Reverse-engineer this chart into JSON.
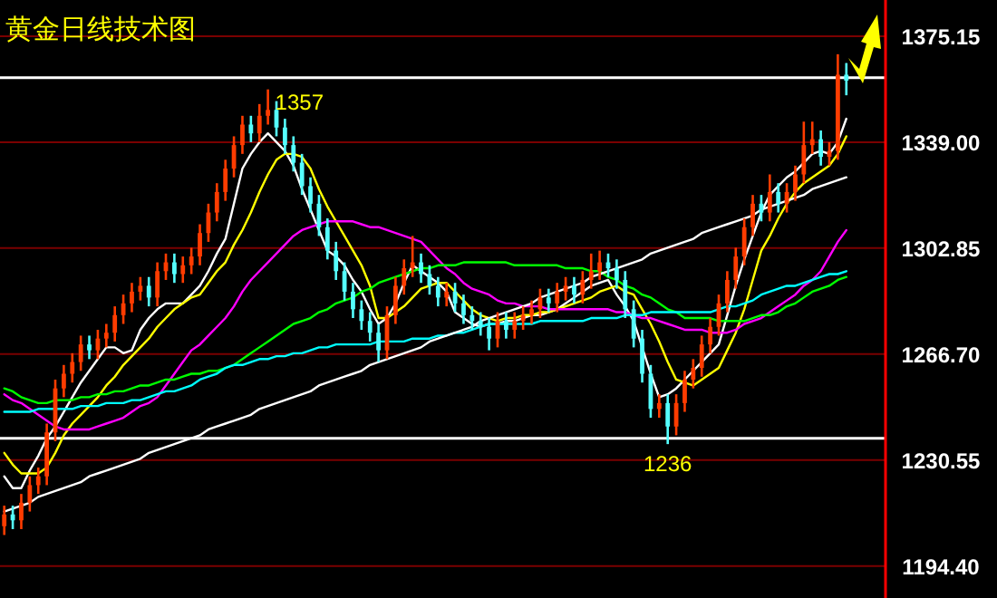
{
  "chart_data": {
    "type": "candlestick",
    "title": "黄金日线技术图",
    "categories": [
      null,
      null,
      null,
      null,
      null,
      null,
      null,
      null,
      null,
      null,
      null,
      null,
      null,
      null,
      null,
      null,
      null,
      null,
      null,
      null,
      null,
      null,
      null,
      null,
      null,
      null,
      null,
      null,
      null,
      null,
      null,
      null,
      null,
      null,
      null,
      null,
      null,
      null,
      null,
      null,
      null,
      null,
      null,
      null,
      null,
      null,
      null,
      null,
      null,
      null,
      null,
      null,
      null,
      null,
      null,
      null,
      null,
      null,
      null,
      null,
      null,
      null,
      null,
      null,
      null,
      null,
      null,
      null,
      null,
      null,
      null,
      null,
      null,
      null,
      null,
      null,
      null,
      null,
      null,
      null,
      null,
      null,
      null,
      null,
      null,
      null,
      null,
      null,
      null,
      null,
      null,
      null,
      null,
      null,
      null,
      null,
      null,
      null,
      null,
      null
    ],
    "ohlc": [
      [
        1208,
        1215,
        1205,
        1212
      ],
      [
        1212,
        1215,
        1207,
        1210
      ],
      [
        1210,
        1219,
        1207,
        1216
      ],
      [
        1216,
        1225,
        1213,
        1222
      ],
      [
        1222,
        1228,
        1219,
        1225
      ],
      [
        1225,
        1243,
        1222,
        1240
      ],
      [
        1240,
        1258,
        1237,
        1255
      ],
      [
        1255,
        1263,
        1252,
        1260
      ],
      [
        1260,
        1267,
        1257,
        1264
      ],
      [
        1264,
        1273,
        1261,
        1270
      ],
      [
        1270,
        1273,
        1265,
        1268
      ],
      [
        1268,
        1275,
        1265,
        1272
      ],
      [
        1272,
        1277,
        1269,
        1274
      ],
      [
        1274,
        1283,
        1271,
        1280
      ],
      [
        1280,
        1287,
        1277,
        1284
      ],
      [
        1284,
        1291,
        1281,
        1288
      ],
      [
        1288,
        1293,
        1285,
        1290
      ],
      [
        1290,
        1293,
        1283,
        1286
      ],
      [
        1286,
        1298,
        1283,
        1295
      ],
      [
        1295,
        1301,
        1292,
        1298
      ],
      [
        1298,
        1301,
        1291,
        1294
      ],
      [
        1294,
        1300,
        1291,
        1297
      ],
      [
        1297,
        1303,
        1294,
        1300
      ],
      [
        1300,
        1311,
        1297,
        1308
      ],
      [
        1308,
        1318,
        1305,
        1315
      ],
      [
        1315,
        1325,
        1312,
        1322
      ],
      [
        1322,
        1333,
        1319,
        1330
      ],
      [
        1330,
        1341,
        1327,
        1338
      ],
      [
        1338,
        1348,
        1335,
        1345
      ],
      [
        1345,
        1348,
        1339,
        1342
      ],
      [
        1342,
        1352,
        1339,
        1348
      ],
      [
        1348,
        1357,
        1345,
        1350
      ],
      [
        1350,
        1353,
        1341,
        1344
      ],
      [
        1344,
        1347,
        1335,
        1338
      ],
      [
        1338,
        1341,
        1329,
        1332
      ],
      [
        1332,
        1335,
        1321,
        1324
      ],
      [
        1324,
        1327,
        1315,
        1318
      ],
      [
        1318,
        1321,
        1307,
        1310
      ],
      [
        1310,
        1313,
        1299,
        1302
      ],
      [
        1302,
        1305,
        1292,
        1295
      ],
      [
        1295,
        1298,
        1285,
        1288
      ],
      [
        1288,
        1291,
        1279,
        1282
      ],
      [
        1282,
        1285,
        1275,
        1278
      ],
      [
        1278,
        1281,
        1271,
        1274
      ],
      [
        1274,
        1277,
        1264,
        1268
      ],
      [
        1268,
        1283,
        1265,
        1280
      ],
      [
        1280,
        1293,
        1277,
        1290
      ],
      [
        1290,
        1299,
        1287,
        1296
      ],
      [
        1296,
        1307,
        1293,
        1298
      ],
      [
        1298,
        1301,
        1291,
        1294
      ],
      [
        1294,
        1297,
        1287,
        1290
      ],
      [
        1290,
        1293,
        1283,
        1286
      ],
      [
        1286,
        1291,
        1283,
        1288
      ],
      [
        1288,
        1291,
        1281,
        1284
      ],
      [
        1284,
        1287,
        1277,
        1280
      ],
      [
        1280,
        1283,
        1275,
        1278
      ],
      [
        1278,
        1281,
        1273,
        1276
      ],
      [
        1276,
        1279,
        1268,
        1272
      ],
      [
        1272,
        1281,
        1269,
        1278
      ],
      [
        1278,
        1281,
        1272,
        1275
      ],
      [
        1275,
        1281,
        1272,
        1278
      ],
      [
        1278,
        1283,
        1275,
        1280
      ],
      [
        1280,
        1285,
        1277,
        1282
      ],
      [
        1282,
        1289,
        1279,
        1286
      ],
      [
        1286,
        1289,
        1281,
        1284
      ],
      [
        1284,
        1291,
        1281,
        1288
      ],
      [
        1288,
        1293,
        1285,
        1290
      ],
      [
        1290,
        1293,
        1284,
        1287
      ],
      [
        1287,
        1295,
        1284,
        1292
      ],
      [
        1292,
        1301,
        1289,
        1295
      ],
      [
        1295,
        1302,
        1292,
        1298
      ],
      [
        1298,
        1301,
        1293,
        1296
      ],
      [
        1296,
        1299,
        1289,
        1292
      ],
      [
        1292,
        1295,
        1279,
        1282
      ],
      [
        1282,
        1285,
        1269,
        1272
      ],
      [
        1272,
        1275,
        1257,
        1260
      ],
      [
        1260,
        1263,
        1245,
        1248
      ],
      [
        1248,
        1253,
        1245,
        1250
      ],
      [
        1250,
        1253,
        1236,
        1242
      ],
      [
        1242,
        1253,
        1239,
        1250
      ],
      [
        1250,
        1261,
        1247,
        1258
      ],
      [
        1258,
        1265,
        1255,
        1262
      ],
      [
        1262,
        1273,
        1259,
        1270
      ],
      [
        1270,
        1279,
        1267,
        1276
      ],
      [
        1276,
        1287,
        1273,
        1284
      ],
      [
        1284,
        1295,
        1281,
        1292
      ],
      [
        1292,
        1303,
        1289,
        1300
      ],
      [
        1300,
        1313,
        1297,
        1310
      ],
      [
        1310,
        1321,
        1307,
        1318
      ],
      [
        1318,
        1321,
        1312,
        1315
      ],
      [
        1315,
        1328,
        1312,
        1322
      ],
      [
        1322,
        1325,
        1315,
        1318
      ],
      [
        1318,
        1325,
        1315,
        1322
      ],
      [
        1322,
        1331,
        1319,
        1328
      ],
      [
        1328,
        1346,
        1325,
        1338
      ],
      [
        1338,
        1346,
        1335,
        1340
      ],
      [
        1340,
        1343,
        1331,
        1334
      ],
      [
        1334,
        1339,
        1331,
        1336
      ],
      [
        1336,
        1369,
        1333,
        1362
      ],
      [
        1362,
        1366,
        1355,
        1360
      ]
    ],
    "colors": [
      "#ff3c00",
      "#55ffff",
      "#ff3c00",
      "#ff3c00",
      "#ff3c00",
      "#ff3c00",
      "#ff3c00",
      "#ff3c00",
      "#ff3c00",
      "#ff3c00",
      "#55ffff",
      "#ff3c00",
      "#ff3c00",
      "#ff3c00",
      "#ff3c00",
      "#ff3c00",
      "#ff3c00",
      "#55ffff",
      "#ff3c00",
      "#ff3c00",
      "#55ffff",
      "#ff3c00",
      "#ff3c00",
      "#ff3c00",
      "#ff3c00",
      "#ff3c00",
      "#ff3c00",
      "#ff3c00",
      "#ff3c00",
      "#55ffff",
      "#ff3c00",
      "#ff3c00",
      "#55ffff",
      "#55ffff",
      "#55ffff",
      "#55ffff",
      "#55ffff",
      "#55ffff",
      "#55ffff",
      "#55ffff",
      "#55ffff",
      "#55ffff",
      "#55ffff",
      "#55ffff",
      "#55ffff",
      "#ff3c00",
      "#ff3c00",
      "#ff3c00",
      "#ff3c00",
      "#55ffff",
      "#55ffff",
      "#55ffff",
      "#ff3c00",
      "#55ffff",
      "#55ffff",
      "#55ffff",
      "#55ffff",
      "#55ffff",
      "#ff3c00",
      "#55ffff",
      "#ff3c00",
      "#ff3c00",
      "#ff3c00",
      "#ff3c00",
      "#55ffff",
      "#ff3c00",
      "#ff3c00",
      "#55ffff",
      "#ff3c00",
      "#ff3c00",
      "#ff3c00",
      "#55ffff",
      "#55ffff",
      "#55ffff",
      "#55ffff",
      "#55ffff",
      "#55ffff",
      "#ff3c00",
      "#55ffff",
      "#ff3c00",
      "#ff3c00",
      "#ff3c00",
      "#ff3c00",
      "#ff3c00",
      "#ff3c00",
      "#ff3c00",
      "#ff3c00",
      "#ff3c00",
      "#ff3c00",
      "#55ffff",
      "#ff3c00",
      "#55ffff",
      "#ff3c00",
      "#ff3c00",
      "#ff3c00",
      "#ff3c00",
      "#55ffff",
      "#ff3c00",
      "#ff3c00",
      "#55ffff"
    ],
    "series": [
      {
        "type": "line",
        "color": "#ffffff",
        "values": [
          1225,
          1221,
          1221,
          1227,
          1232,
          1238,
          1242,
          1247,
          1252,
          1257,
          1261,
          1265,
          1269,
          1269,
          1267,
          1268,
          1275,
          1279,
          1282,
          1284,
          1284,
          1284,
          1287,
          1290,
          1295,
          1301,
          1306,
          1318,
          1330,
          1335,
          1339,
          1342,
          1339,
          1336,
          1331,
          1323,
          1316,
          1309,
          1302,
          1300,
          1297,
          1292,
          1288,
          1282,
          1277,
          1279,
          1284,
          1291,
          1297,
          1295,
          1293,
          1291,
          1288,
          1281,
          1279,
          1277,
          1276,
          1277,
          1277,
          1278,
          1278,
          1279,
          1280,
          1280,
          1281,
          1282,
          1284,
          1286,
          1288,
          1290,
          1291,
          1292,
          1287,
          1283,
          1278,
          1269,
          1260,
          1252,
          1253,
          1255,
          1258,
          1261,
          1264,
          1267,
          1270,
          1280,
          1290,
          1299,
          1307,
          1315,
          1321,
          1324,
          1327,
          1329,
          1332,
          1335,
          1336,
          1335,
          1339,
          1347
        ]
      },
      {
        "type": "line",
        "color": "#ffff00",
        "values": [
          1233,
          1229,
          1226,
          1226,
          1226,
          1228,
          1233,
          1239,
          1243,
          1246,
          1249,
          1252,
          1256,
          1259,
          1263,
          1266,
          1269,
          1272,
          1276,
          1279,
          1282,
          1284,
          1286,
          1287,
          1291,
          1295,
          1298,
          1304,
          1309,
          1315,
          1322,
          1328,
          1333,
          1335,
          1335,
          1334,
          1330,
          1323,
          1317,
          1312,
          1307,
          1302,
          1297,
          1290,
          1279,
          1279,
          1281,
          1283,
          1286,
          1289,
          1290,
          1291,
          1291,
          1288,
          1285,
          1282,
          1280,
          1279,
          1278,
          1279,
          1279,
          1280,
          1280,
          1281,
          1281,
          1282,
          1283,
          1284,
          1285,
          1286,
          1288,
          1289,
          1290,
          1288,
          1287,
          1282,
          1277,
          1271,
          1264,
          1258,
          1257,
          1256,
          1258,
          1260,
          1262,
          1268,
          1274,
          1282,
          1292,
          1302,
          1307,
          1313,
          1318,
          1322,
          1325,
          1327,
          1329,
          1331,
          1335,
          1341
        ]
      },
      {
        "type": "line",
        "color": "#ff00ff",
        "values": [
          1253,
          1251,
          1250,
          1248,
          1246,
          1244,
          1242,
          1241,
          1241,
          1241,
          1241,
          1242,
          1243,
          1244,
          1245,
          1247,
          1249,
          1250,
          1252,
          1256,
          1260,
          1264,
          1268,
          1270,
          1273,
          1276,
          1279,
          1283,
          1288,
          1292,
          1295,
          1298,
          1301,
          1304,
          1307,
          1309,
          1310,
          1311,
          1312,
          1312,
          1312,
          1312,
          1311,
          1310,
          1310,
          1309,
          1308,
          1307,
          1306,
          1305,
          1302,
          1299,
          1296,
          1294,
          1291,
          1289,
          1288,
          1287,
          1285,
          1284,
          1284,
          1283,
          1283,
          1283,
          1282,
          1282,
          1282,
          1282,
          1282,
          1282,
          1282,
          1282,
          1281,
          1281,
          1280,
          1279,
          1279,
          1278,
          1277,
          1276,
          1275,
          1275,
          1275,
          1274,
          1274,
          1274,
          1275,
          1277,
          1278,
          1279,
          1281,
          1283,
          1285,
          1287,
          1290,
          1292,
          1295,
          1300,
          1305,
          1309
        ]
      },
      {
        "type": "line",
        "color": "#00ff00",
        "values": [
          1255,
          1254,
          1252,
          1251,
          1250,
          1250,
          1251,
          1251,
          1251,
          1252,
          1252,
          1253,
          1253,
          1254,
          1254,
          1255,
          1256,
          1256,
          1257,
          1258,
          1258,
          1259,
          1260,
          1260,
          1261,
          1261,
          1262,
          1263,
          1265,
          1267,
          1269,
          1271,
          1273,
          1275,
          1277,
          1278,
          1279,
          1281,
          1282,
          1284,
          1285,
          1286,
          1288,
          1289,
          1291,
          1292,
          1293,
          1294,
          1295,
          1296,
          1296,
          1297,
          1297,
          1297,
          1298,
          1298,
          1298,
          1298,
          1298,
          1298,
          1297,
          1297,
          1297,
          1297,
          1297,
          1297,
          1296,
          1296,
          1296,
          1295,
          1295,
          1293,
          1292,
          1290,
          1289,
          1287,
          1286,
          1284,
          1282,
          1281,
          1279,
          1279,
          1279,
          1279,
          1278,
          1278,
          1278,
          1278,
          1279,
          1280,
          1280,
          1281,
          1283,
          1284,
          1286,
          1288,
          1289,
          1290,
          1292,
          1293
        ]
      },
      {
        "type": "line",
        "color": "#00ffff",
        "values": [
          1247,
          1247,
          1247,
          1247,
          1248,
          1248,
          1248,
          1248,
          1248,
          1249,
          1249,
          1249,
          1250,
          1250,
          1250,
          1251,
          1251,
          1252,
          1253,
          1254,
          1254,
          1255,
          1256,
          1258,
          1259,
          1260,
          1262,
          1263,
          1263,
          1264,
          1265,
          1265,
          1266,
          1266,
          1267,
          1267,
          1268,
          1269,
          1269,
          1270,
          1270,
          1270,
          1270,
          1270,
          1271,
          1271,
          1271,
          1271,
          1272,
          1272,
          1272,
          1273,
          1273,
          1274,
          1274,
          1275,
          1276,
          1277,
          1277,
          1277,
          1277,
          1277,
          1277,
          1278,
          1278,
          1278,
          1278,
          1278,
          1278,
          1279,
          1279,
          1279,
          1279,
          1280,
          1280,
          1280,
          1281,
          1281,
          1281,
          1281,
          1281,
          1281,
          1281,
          1281,
          1282,
          1283,
          1283,
          1284,
          1285,
          1287,
          1288,
          1289,
          1290,
          1290,
          1291,
          1292,
          1293,
          1294,
          1294,
          1295
        ]
      },
      {
        "type": "line",
        "color": "#ffffff",
        "values": [
          1213,
          1214,
          1215,
          1216,
          1218,
          1219,
          1220,
          1221,
          1222,
          1223,
          1225,
          1226,
          1227,
          1228,
          1229,
          1230,
          1231,
          1233,
          1234,
          1235,
          1236,
          1237,
          1238,
          1239,
          1241,
          1242,
          1243,
          1244,
          1245,
          1246,
          1248,
          1249,
          1250,
          1251,
          1252,
          1253,
          1254,
          1256,
          1257,
          1258,
          1259,
          1260,
          1261,
          1263,
          1264,
          1265,
          1266,
          1267,
          1268,
          1269,
          1271,
          1272,
          1273,
          1274,
          1275,
          1276,
          1278,
          1279,
          1280,
          1281,
          1282,
          1283,
          1284,
          1286,
          1287,
          1288,
          1289,
          1290,
          1291,
          1293,
          1294,
          1295,
          1296,
          1297,
          1298,
          1299,
          1301,
          1302,
          1303,
          1304,
          1305,
          1306,
          1308,
          1309,
          1310,
          1311,
          1312,
          1313,
          1314,
          1316,
          1317,
          1318,
          1319,
          1320,
          1321,
          1323,
          1324,
          1325,
          1326,
          1327
        ]
      }
    ],
    "ylim": [
      1183.5,
      1387.5
    ],
    "yticks": [
      {
        "value": 1194.4,
        "label": "1194.40"
      },
      {
        "value": 1230.55,
        "label": "1230.55"
      },
      {
        "value": 1266.7,
        "label": "1266.70"
      },
      {
        "value": 1302.85,
        "label": "1302.85"
      },
      {
        "value": 1339,
        "label": "1339.00"
      },
      {
        "value": 1375.15,
        "label": "1375.15"
      }
    ],
    "tick_labels": "y",
    "grid": "y",
    "ref_lines": [
      {
        "axis": "y",
        "value": 1361,
        "color": "#ffffff"
      },
      {
        "axis": "y",
        "value": 1238,
        "color": "#ffffff"
      }
    ],
    "annotations": [
      "1357",
      {
        "text": "1236",
        "y": 1236
      }
    ]
  }
}
